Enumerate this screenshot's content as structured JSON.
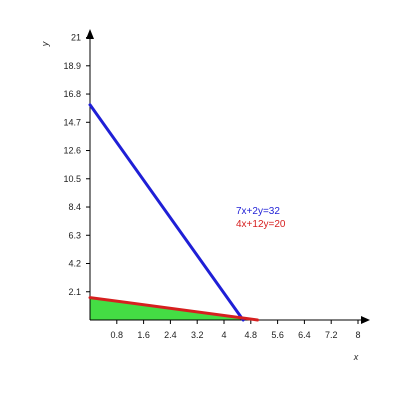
{
  "chart_data": {
    "type": "line",
    "xlabel": "x",
    "ylabel": "y",
    "xlim": [
      0,
      8
    ],
    "ylim": [
      0,
      21
    ],
    "x_ticks": [
      0.8,
      1.6,
      2.4,
      3.2,
      4,
      4.8,
      5.6,
      6.4,
      7.2,
      8
    ],
    "y_ticks": [
      2.1,
      4.2,
      6.3,
      8.4,
      10.5,
      12.6,
      14.7,
      16.8,
      18.9,
      21
    ],
    "x_tick_labels": [
      "0.8",
      "1.6",
      "2.4",
      "3.2",
      "4",
      "4.8",
      "5.6",
      "6.4",
      "7.2",
      "8"
    ],
    "y_tick_labels": [
      "2.1",
      "4.2",
      "6.3",
      "8.4",
      "10.5",
      "12.6",
      "14.7",
      "16.8",
      "18.9",
      "21"
    ],
    "series": [
      {
        "name": "7x+2y=32",
        "color": "#1f1fd6",
        "x": [
          0,
          4.5714
        ],
        "y": [
          16,
          0
        ]
      },
      {
        "name": "4x+12y=20",
        "color": "#d61f1f",
        "x": [
          0,
          5
        ],
        "y": [
          1.6667,
          0
        ]
      }
    ],
    "shaded_region": {
      "color": "#44dd44",
      "x": [
        0,
        0,
        5
      ],
      "y": [
        0,
        1.6667,
        0
      ]
    },
    "grid": false,
    "legend_position": "center-right"
  }
}
